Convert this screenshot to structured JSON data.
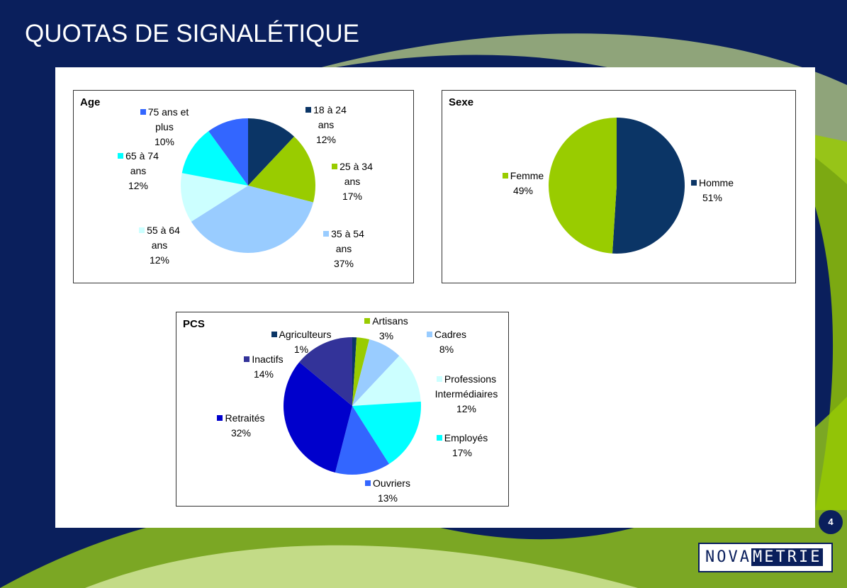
{
  "title": "QUOTAS DE SIGNALÉTIQUE",
  "page_number": "4",
  "logo": {
    "part1": "NOVA",
    "part2": "METRIE"
  },
  "chart_data": [
    {
      "type": "pie",
      "title": "Age",
      "categories": [
        "18 à 24 ans",
        "25 à 34 ans",
        "35 à 54 ans",
        "55 à 64 ans",
        "65 à 74 ans",
        "75 ans et plus"
      ],
      "values": [
        12,
        17,
        37,
        12,
        12,
        10
      ],
      "value_labels": [
        "12%",
        "17%",
        "37%",
        "12%",
        "12%",
        "10%"
      ],
      "colors": [
        "#0b3566",
        "#99cc00",
        "#99ccff",
        "#ccffff",
        "#00ffff",
        "#3366ff"
      ]
    },
    {
      "type": "pie",
      "title": "Sexe",
      "categories": [
        "Homme",
        "Femme"
      ],
      "values": [
        51,
        49
      ],
      "value_labels": [
        "51%",
        "49%"
      ],
      "colors": [
        "#0b3566",
        "#99cc00"
      ]
    },
    {
      "type": "pie",
      "title": "PCS",
      "categories": [
        "Agriculteurs",
        "Artisans",
        "Cadres",
        "Professions Intermédiaires",
        "Employés",
        "Ouvriers",
        "Retraités",
        "Inactifs"
      ],
      "values": [
        1,
        3,
        8,
        12,
        17,
        13,
        32,
        14
      ],
      "value_labels": [
        "1%",
        "3%",
        "8%",
        "12%",
        "17%",
        "13%",
        "32%",
        "14%"
      ],
      "colors": [
        "#0b3566",
        "#99cc00",
        "#99ccff",
        "#ccffff",
        "#00ffff",
        "#3366ff",
        "#0000cc",
        "#333399"
      ]
    }
  ]
}
